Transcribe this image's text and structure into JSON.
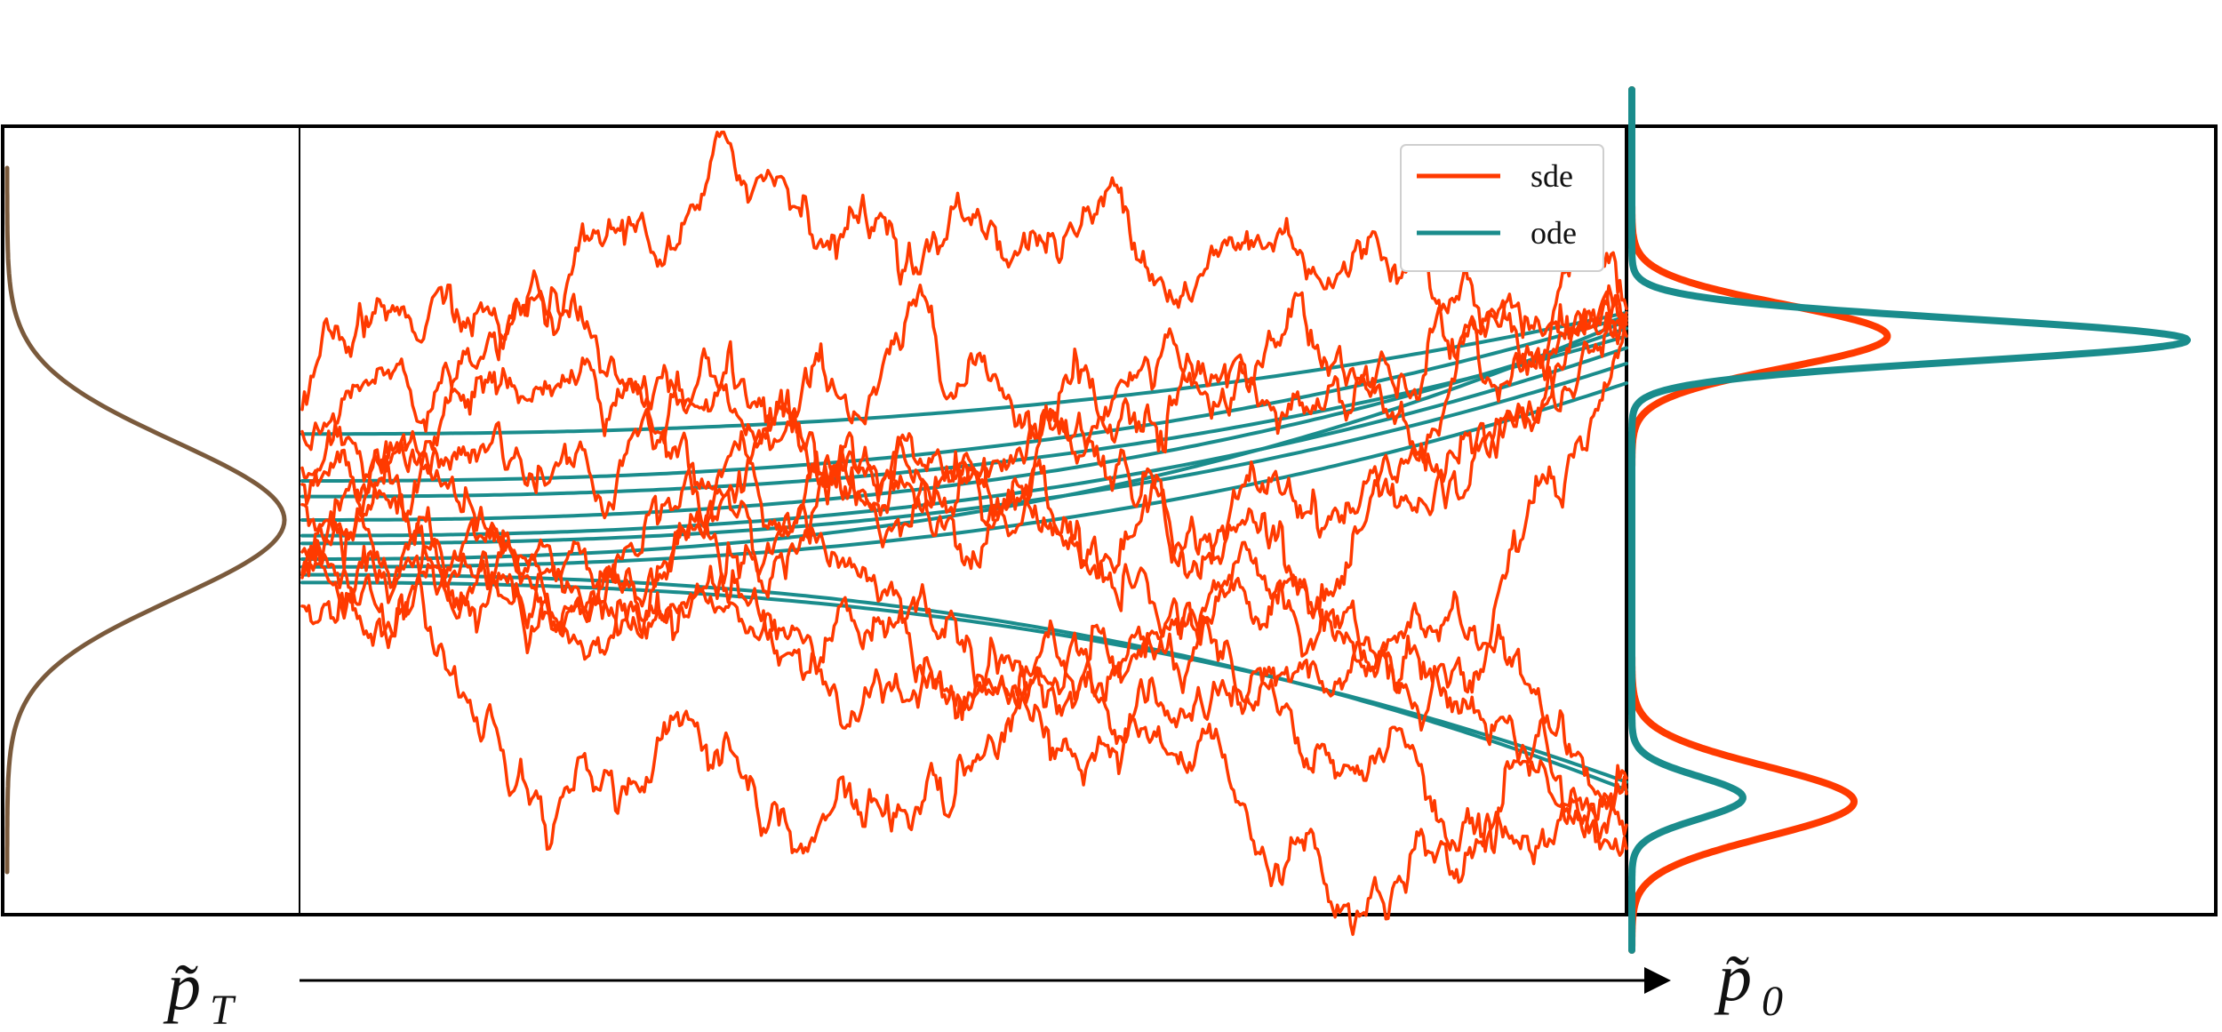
{
  "colors": {
    "sde": "#ff3a00",
    "ode": "#1a8c8c",
    "prior": "#7a5a3c",
    "frame": "#000000"
  },
  "legend": [
    {
      "name": "sde",
      "color": "#ff3a00"
    },
    {
      "name": "ode",
      "color": "#1a8c8c"
    }
  ],
  "labels": {
    "prior_label": "p̃",
    "prior_sub": "T",
    "data_label": "p̃",
    "data_sub": "0"
  },
  "chart_data": [
    {
      "type": "line",
      "panel": "prior density",
      "x": [
        0,
        0.03,
        0.08,
        0.15,
        0.3,
        0.5,
        0.7,
        0.85,
        0.95,
        1.0,
        0.95,
        0.85,
        0.7,
        0.5,
        0.3,
        0.15,
        0.08,
        0.03,
        0
      ],
      "y": [
        4.5,
        4.0,
        3.5,
        3.0,
        2.5,
        2.0,
        1.5,
        1.0,
        0.5,
        0.0,
        -0.5,
        -1.0,
        -1.5,
        -2.0,
        -2.5,
        -3.0,
        -3.5,
        -4.0,
        -4.5
      ],
      "series": [
        {
          "name": "",
          "color": "#7a5a3c"
        }
      ]
    },
    {
      "type": "line",
      "panel": "trajectories",
      "xlim": [
        0,
        1
      ],
      "ylim": [
        -5,
        5
      ],
      "series": [
        {
          "name": "sde",
          "count": 10
        },
        {
          "name": "ode",
          "count": 10
        }
      ],
      "ode_starts": [
        1.1,
        0.5,
        0.0,
        -0.2,
        -0.6,
        -0.8,
        -0.5,
        0.3,
        -0.3,
        -0.7
      ],
      "ode_ends": [
        2.65,
        2.6,
        2.45,
        2.2,
        1.75,
        -3.35,
        2.55,
        2.35,
        2.0,
        -3.45
      ],
      "sde_ends": [
        2.7,
        2.55,
        2.5,
        2.35,
        2.6,
        2.65,
        -3.3,
        -3.5,
        -4.2,
        -3.9
      ]
    },
    {
      "type": "line",
      "panel": "data density",
      "ylim": [
        -5,
        5
      ],
      "series": [
        {
          "name": "sde",
          "modes": [
            {
              "mean": 2.35,
              "height": 0.46,
              "std": 0.4
            },
            {
              "mean": -3.6,
              "height": 0.4,
              "std": 0.45
            }
          ]
        },
        {
          "name": "ode",
          "modes": [
            {
              "mean": 2.3,
              "height": 1.0,
              "std": 0.27
            },
            {
              "mean": -3.55,
              "height": 0.2,
              "std": 0.27
            }
          ]
        }
      ]
    }
  ]
}
